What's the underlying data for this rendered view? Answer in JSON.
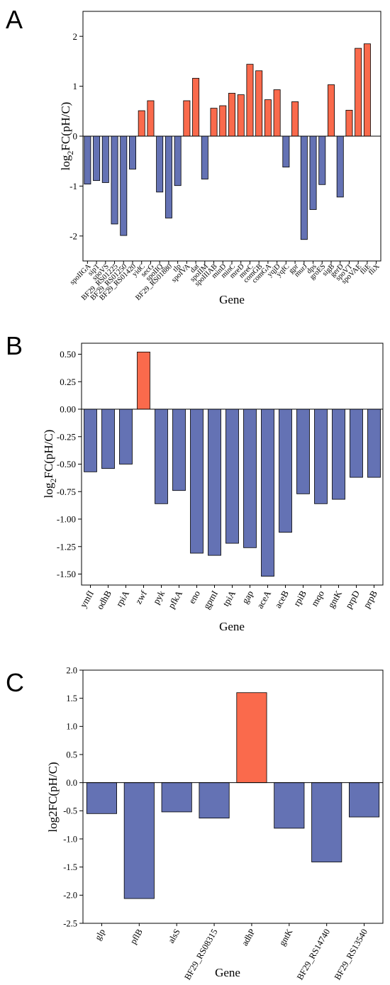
{
  "colors": {
    "positive": "#FA6A4C",
    "negative": "#6472B4"
  },
  "chart_data": [
    {
      "type": "bar",
      "panel": "A",
      "xlabel": "Gene",
      "ylabel_main": "log",
      "ylabel_sub": "2",
      "ylabel_rest": "FC(pH/C)",
      "ylim": [
        -2.5,
        2.5
      ],
      "yticks": [
        -2,
        -1,
        0,
        1,
        2
      ],
      "ytick_labels": [
        "-2",
        "-1",
        "0",
        "1",
        "2"
      ],
      "grid": false,
      "categories": [
        "spoIIGA",
        "sipT",
        "spoVS",
        "BF29_RS01225",
        "BF29_RS01250",
        "BF29_RS01420",
        "yidC",
        "secG",
        "spoIIQ",
        "BF29_RS01880",
        "tlp",
        "spoIVA",
        "dat",
        "spoIIM",
        "spoIIIAB",
        "minD",
        "minC",
        "mreD",
        "mreC",
        "comGB",
        "comGA",
        "yqjD",
        "yqfC",
        "gpr",
        "murJ",
        "dps",
        "groES",
        "sigB",
        "gerD",
        "spoVT",
        "spoVAE",
        "fliE",
        "fliX"
      ],
      "labels_shown": [
        "spoIIGA",
        "sipT",
        "spoVS",
        "BF29_RS01225",
        "BF29_RS01250",
        "BF29_RS01420",
        "yidC",
        "secG",
        "spoIIQ",
        "BF29_RS01880",
        "tlp",
        "spoIVA",
        "dat",
        "spoIIM",
        "spoIIIAB",
        "minD",
        "minC",
        "mreD",
        "mreC",
        "comGB",
        "comGA",
        "yqjD",
        "yqfC",
        "gpr",
        "murJ",
        "dps",
        "groES",
        "sigB",
        "gerD",
        "spoVT",
        "spoVAE",
        "fliE",
        "fliX"
      ],
      "values": [
        -0.96,
        -0.89,
        -0.93,
        -1.76,
        -1.99,
        -0.66,
        0.51,
        0.71,
        -1.12,
        -1.64,
        -0.99,
        0.71,
        1.16,
        -0.86,
        0.56,
        0.61,
        0.86,
        0.83,
        1.44,
        1.31,
        0.73,
        0.93,
        -0.62,
        0.69,
        -2.07,
        -1.47,
        -0.97,
        1.03,
        -1.22,
        0.52,
        1.76,
        1.85,
        0
      ]
    },
    {
      "type": "bar",
      "panel": "B",
      "xlabel": "Gene",
      "ylabel_main": "log",
      "ylabel_sub": "2",
      "ylabel_rest": "FC(pH/C)",
      "ylim": [
        -1.6,
        0.6
      ],
      "yticks": [
        -1.5,
        -1.25,
        -1.0,
        -0.75,
        -0.5,
        -0.25,
        0.0,
        0.25,
        0.5
      ],
      "ytick_labels": [
        "-1.50",
        "-1.25",
        "-1.00",
        "-0.75",
        "-0.50",
        "-0.25",
        "0.00",
        "0.25",
        "0.50"
      ],
      "grid": false,
      "categories": [
        "ymfI",
        "odhB",
        "rpiA",
        "zwf",
        "pyk",
        "pfkA",
        "eno",
        "gpmI",
        "tpiA",
        "gap",
        "aceA",
        "aceB",
        "rpiB",
        "mqo",
        "gntK",
        "prpD",
        "prpB"
      ],
      "values": [
        -0.57,
        -0.54,
        -0.5,
        0.52,
        -0.86,
        -0.74,
        -1.31,
        -1.33,
        -1.22,
        -1.26,
        -1.52,
        -1.12,
        -0.77,
        -0.86,
        -0.82,
        -0.62,
        -0.62
      ]
    },
    {
      "type": "bar",
      "panel": "C",
      "xlabel": "Gene",
      "ylabel_text": "log2FC(pH/C)",
      "ylim": [
        -2.5,
        2.0
      ],
      "yticks": [
        -2.5,
        -2.0,
        -1.5,
        -1.0,
        -0.5,
        0.0,
        0.5,
        1.0,
        1.5,
        2.0
      ],
      "ytick_labels": [
        "-2.5",
        "-2.0",
        "-1.5",
        "-1.0",
        "-0.5",
        "0.0",
        "0.5",
        "1.0",
        "1.5",
        "2.0"
      ],
      "grid": false,
      "categories": [
        "glp",
        "pflB",
        "alsS",
        "BF29_RS08315",
        "adhP",
        "gntK",
        "BF29_RS14740",
        "BF29_RS13540"
      ],
      "values": [
        -0.55,
        -2.06,
        -0.52,
        -0.63,
        1.6,
        -0.81,
        -1.41,
        -0.61
      ]
    }
  ]
}
